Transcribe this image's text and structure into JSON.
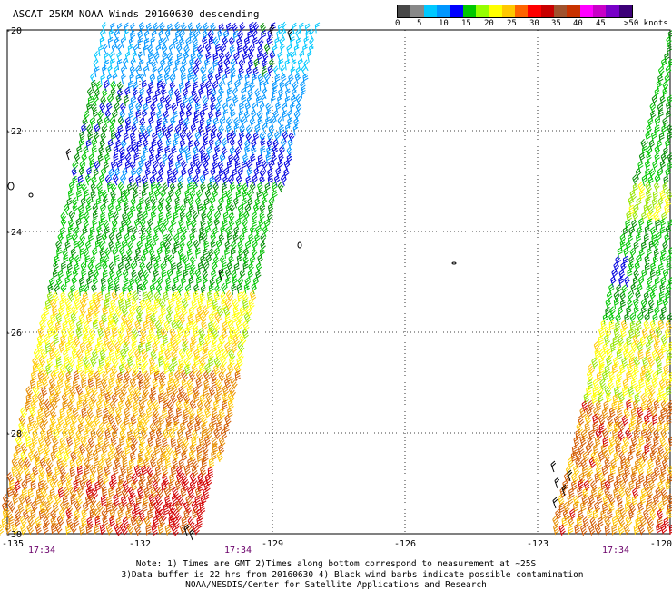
{
  "title": "ASCAT 25KM NOAA Winds 20160630 descending",
  "legend": {
    "colors": [
      "#484848",
      "#888888",
      "#00c8ff",
      "#0096ff",
      "#0000ff",
      "#00c800",
      "#96ff00",
      "#ffff00",
      "#ffc800",
      "#ff6400",
      "#ff0000",
      "#c80000",
      "#a0522d",
      "#c83200",
      "#ff00ff",
      "#c800c8",
      "#7800c8",
      "#3c0078"
    ],
    "labels": [
      "0",
      "5",
      "10",
      "15",
      "20",
      "25",
      "30",
      "35",
      "40",
      "45",
      ">50 knots"
    ]
  },
  "axes": {
    "lat_labels": [
      "-20",
      "-22",
      "-24",
      "-26",
      "-28",
      "-30"
    ],
    "lon_labels": [
      "-135",
      "-132",
      "-129",
      "-126",
      "-123",
      "-120"
    ]
  },
  "time_labels": [
    "17:34",
    "17:34",
    "17:34"
  ],
  "notes": [
    "Note: 1) Times are GMT 2)Times along bottom correspond to measurement at ~25S",
    "3)Data buffer is 22 hrs from 20160630 4) Black wind barbs indicate possible contamination",
    "NOAA/NESDIS/Center for Satellite Applications and Research"
  ],
  "chart_data": {
    "type": "scatter",
    "description_values": {
      "lat_range": [
        -30,
        -20
      ],
      "lon_range": [
        -135,
        -120
      ]
    },
    "series": [
      {
        "speed_bands_knots": [
          0,
          5,
          10,
          15,
          20,
          25,
          30,
          35,
          40,
          45,
          50
        ]
      }
    ]
  }
}
